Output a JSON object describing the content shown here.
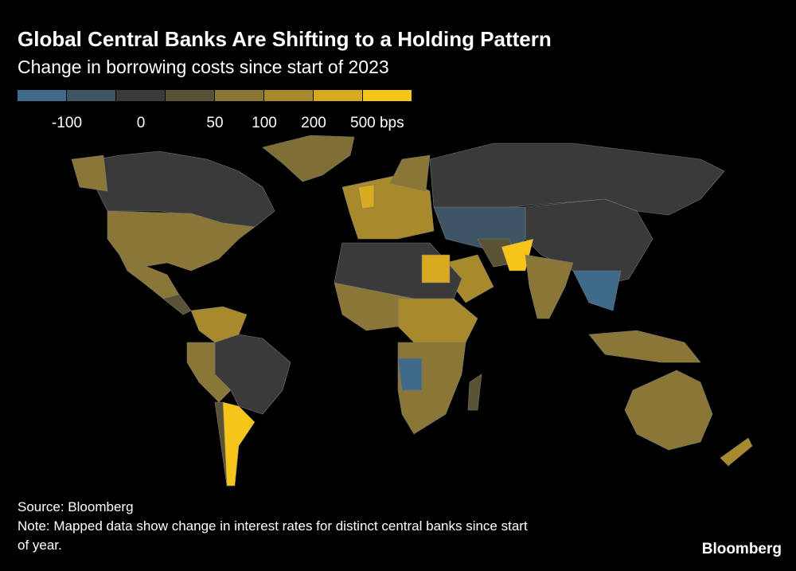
{
  "header": {
    "title": "Global Central Banks Are Shifting to a Holding Pattern",
    "subtitle": "Change in borrowing costs since start of 2023"
  },
  "legend": {
    "colors": [
      "#3f6a8a",
      "#3e5566",
      "#3a3a3a",
      "#5a5234",
      "#8a7636",
      "#a88a2c",
      "#d8aa1f",
      "#f7c51a"
    ],
    "labels": [
      "-100",
      "0",
      "50",
      "100",
      "200",
      "500 bps"
    ]
  },
  "footer": {
    "source": "Source: Bloomberg",
    "note": [
      "Note: Mapped data show change in interest rates for distinct central banks since start",
      "of year."
    ],
    "brand": "Bloomberg"
  }
}
